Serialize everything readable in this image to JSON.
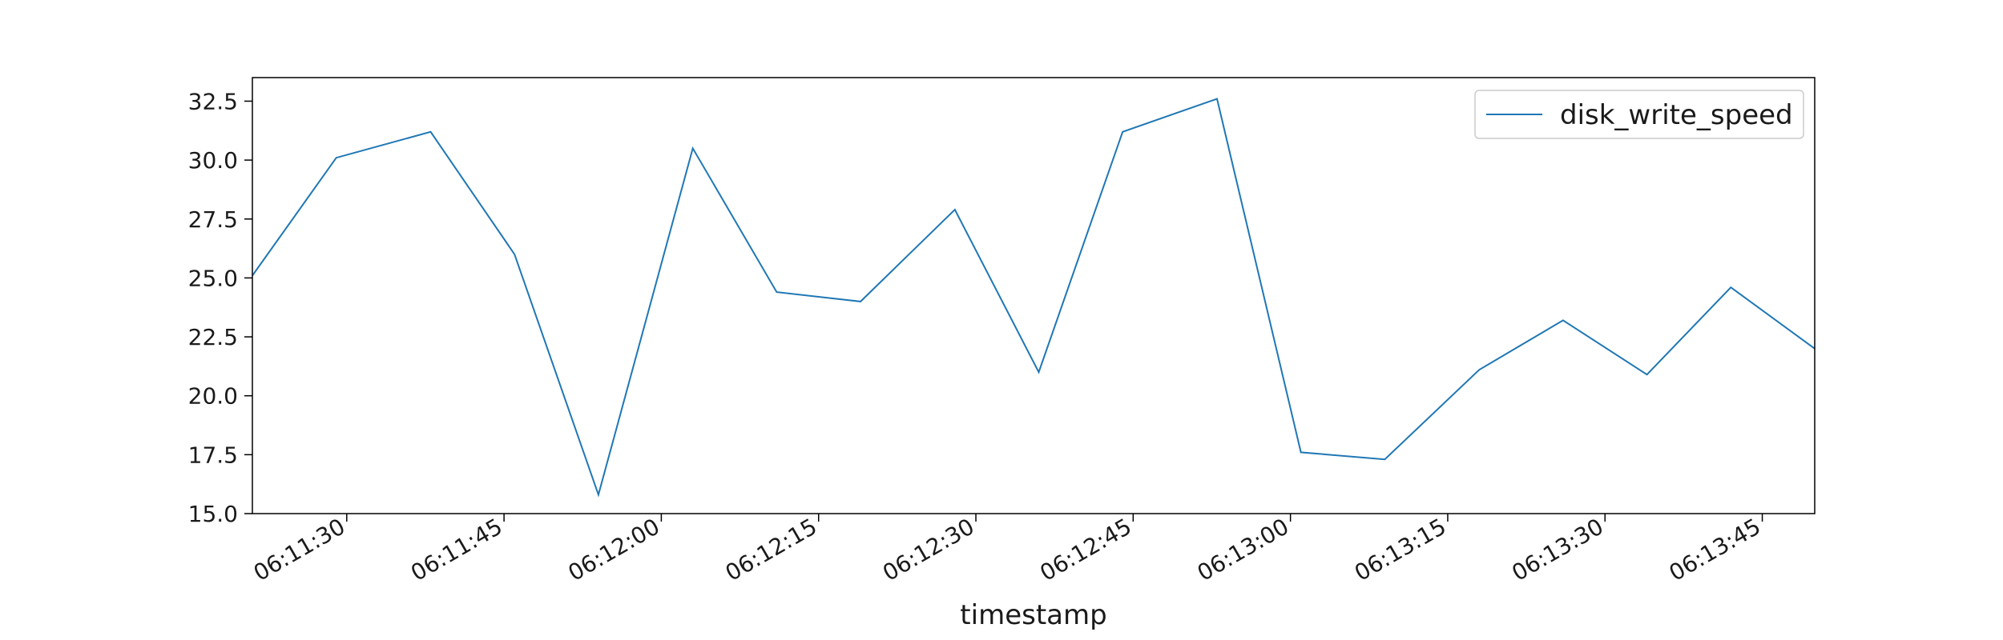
{
  "chart_data": {
    "type": "line",
    "title": "",
    "xlabel": "timestamp",
    "ylabel": "",
    "x_tick_labels": [
      "06:11:30",
      "06:11:45",
      "06:12:00",
      "06:12:15",
      "06:12:30",
      "06:12:45",
      "06:13:00",
      "06:13:15",
      "06:13:30",
      "06:13:45"
    ],
    "y_tick_labels": [
      "15.0",
      "17.5",
      "20.0",
      "22.5",
      "25.0",
      "27.5",
      "30.0",
      "32.5"
    ],
    "y_ticks": [
      15.0,
      17.5,
      20.0,
      22.5,
      25.0,
      27.5,
      30.0,
      32.5
    ],
    "ylim": [
      15.0,
      33.5
    ],
    "xlim": [
      "06:11:21",
      "06:13:50"
    ],
    "grid": false,
    "legend_position": "top-right",
    "series": [
      {
        "name": "disk_write_speed",
        "color": "#1f77b4",
        "x": [
          "06:11:21",
          "06:11:29",
          "06:11:38",
          "06:11:46",
          "06:11:54",
          "06:12:03",
          "06:12:11",
          "06:12:19",
          "06:12:28",
          "06:12:36",
          "06:12:44",
          "06:12:53",
          "06:13:01",
          "06:13:09",
          "06:13:18",
          "06:13:26",
          "06:13:34",
          "06:13:42",
          "06:13:50"
        ],
        "values": [
          25.1,
          30.1,
          31.2,
          26.0,
          15.8,
          30.5,
          24.4,
          24.0,
          27.9,
          21.0,
          31.2,
          32.6,
          17.6,
          17.3,
          21.1,
          23.2,
          20.9,
          24.6,
          22.0
        ]
      }
    ]
  }
}
